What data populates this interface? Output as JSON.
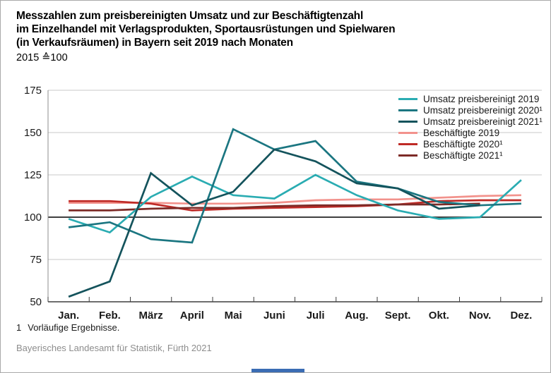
{
  "header": {
    "title_lines": [
      "Messzahlen zum preisbereinigten Umsatz und zur Beschäftigtenzahl",
      "im Einzelhandel mit Verlagsprodukten, Sportausrüstungen und Spielwaren",
      "(in Verkaufsräumen) in Bayern seit 2019 nach Monaten"
    ],
    "subtitle": "2015 ≙100"
  },
  "footnote": {
    "marker": "1",
    "text": "Vorläufige Ergebnisse."
  },
  "footer": {
    "source": "Bayerisches Landesamt für Statistik, Fürth 2021"
  },
  "colors": {
    "grid": "#c9c9c9",
    "axis_dark": "#3f3f3f",
    "axis_left": "#8c8c8c",
    "label": "#1a1a1a"
  },
  "chart_data": {
    "type": "line",
    "title": "Messzahlen zum preisbereinigten Umsatz und zur Beschäftigtenzahl im Einzelhandel mit Verlagsprodukten, Sportausrüstungen und Spielwaren (in Verkaufsräumen) in Bayern seit 2019 nach Monaten",
    "subtitle": "2015 ≙100",
    "xlabel": "",
    "ylabel": "",
    "ylim": [
      50,
      175
    ],
    "yticks": [
      50,
      75,
      100,
      125,
      150,
      175
    ],
    "baseline": 100,
    "grid": "horizontal",
    "legend_position": "top-right",
    "categories": [
      "Jan.",
      "Feb.",
      "März",
      "April",
      "Mai",
      "Juni",
      "Juli",
      "Aug.",
      "Sept.",
      "Okt.",
      "Nov.",
      "Dez."
    ],
    "series": [
      {
        "name": "Umsatz preisbereinigt 2019",
        "color": "#2aacb2",
        "values": [
          99,
          91,
          112,
          124,
          113,
          111,
          125,
          113,
          104,
          99,
          100,
          122
        ]
      },
      {
        "name": "Umsatz preisbereinigt 2020¹",
        "color": "#1b7681",
        "values": [
          94,
          97,
          87,
          85,
          152,
          140,
          145,
          121,
          117,
          109,
          107,
          108
        ]
      },
      {
        "name": "Umsatz preisbereinigt 2021¹",
        "color": "#14535c",
        "values": [
          53,
          62,
          126,
          107,
          115,
          140,
          133,
          120,
          117,
          105,
          107,
          null
        ]
      },
      {
        "name": "Beschäftigte 2019",
        "color": "#f2928c",
        "values": [
          108.5,
          108.5,
          108.5,
          108,
          108,
          108.5,
          110,
          110.5,
          110.5,
          111.5,
          112.5,
          113
        ]
      },
      {
        "name": "Beschäftigte 2020¹",
        "color": "#bf2a26",
        "values": [
          109.5,
          109.5,
          108,
          104,
          105,
          105.5,
          106,
          106.5,
          107.5,
          109.5,
          110,
          110
        ]
      },
      {
        "name": "Beschäftigte 2021¹",
        "color": "#7d2b27",
        "values": [
          104,
          104,
          105,
          105.5,
          105.5,
          106.5,
          107,
          107,
          107.5,
          107.5,
          108,
          null
        ]
      }
    ]
  }
}
